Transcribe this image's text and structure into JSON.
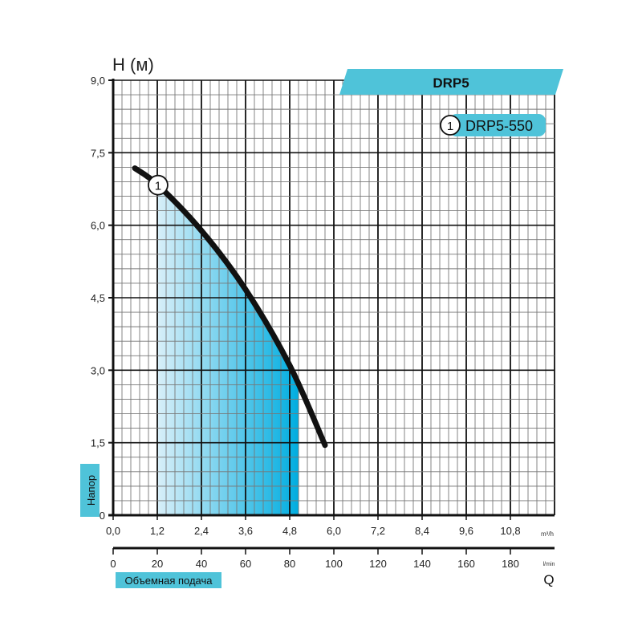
{
  "chart_data": {
    "type": "line",
    "title": "DRP5",
    "ylabel": "Напор",
    "y_unit_label": "H (м)",
    "xlabel": "Объемная подача",
    "x_symbol": "Q",
    "x_unit": "m³/h",
    "x2_unit": "l/min",
    "xlim": [
      0,
      12
    ],
    "ylim": [
      0,
      9
    ],
    "x_ticks": [
      "0,0",
      "1,2",
      "2,4",
      "3,6",
      "4,8",
      "6,0",
      "7,2",
      "8,4",
      "9,6",
      "10,8"
    ],
    "x2_ticks": [
      "0",
      "20",
      "40",
      "60",
      "80",
      "100",
      "120",
      "140",
      "160",
      "180"
    ],
    "y_ticks": [
      "0",
      "1,5",
      "3,0",
      "4,5",
      "6,0",
      "7,5",
      "9,0"
    ],
    "grid": true,
    "legend": "top-right",
    "series": [
      {
        "name": "DRP5-550",
        "marker": "1",
        "color": "#111111",
        "x": [
          0.59,
          1.22,
          2.42,
          3.6,
          4.8,
          5.76
        ],
        "y": [
          7.18,
          6.83,
          5.87,
          4.67,
          3.1,
          1.45
        ]
      }
    ],
    "operating_range": {
      "x": [
        1.2,
        5.05
      ],
      "colors": [
        "#d6eef9",
        "#00aee0"
      ]
    },
    "accent_color": "#4fc3d9"
  }
}
